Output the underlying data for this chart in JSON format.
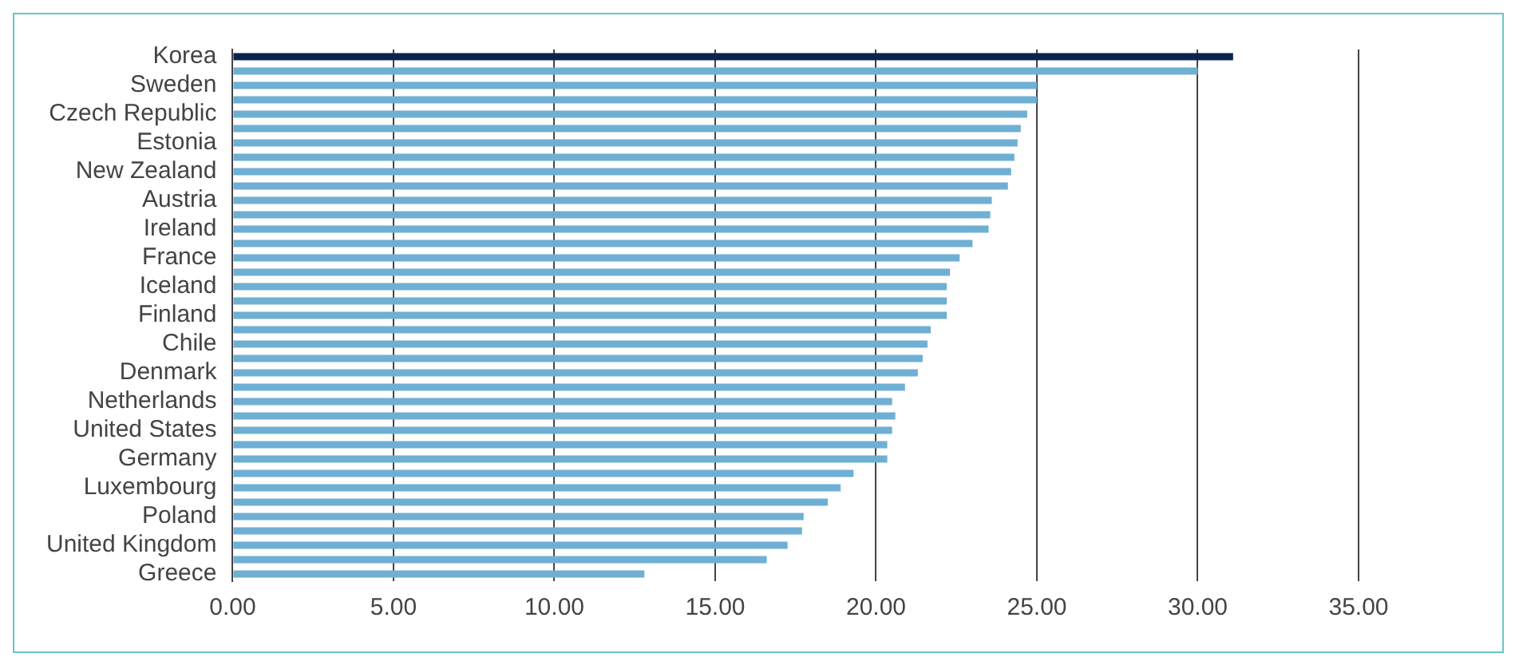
{
  "chart_data": {
    "type": "bar",
    "orientation": "horizontal",
    "categories": [
      "Korea",
      null,
      "Sweden",
      null,
      "Czech Republic",
      null,
      "Estonia",
      null,
      "New Zealand",
      null,
      "Austria",
      null,
      "Ireland",
      null,
      "France",
      null,
      "Iceland",
      null,
      "Finland",
      null,
      "Chile",
      null,
      "Denmark",
      null,
      "Netherlands",
      null,
      "United States",
      null,
      "Germany",
      null,
      "Luxembourg",
      null,
      "Poland",
      null,
      "United Kingdom",
      null,
      "Greece"
    ],
    "values": [
      31.1,
      30.0,
      25.0,
      25.0,
      24.7,
      24.5,
      24.4,
      24.3,
      24.2,
      24.1,
      23.6,
      23.55,
      23.5,
      23.0,
      22.6,
      22.3,
      22.2,
      22.2,
      22.2,
      21.7,
      21.6,
      21.45,
      21.3,
      20.9,
      20.5,
      20.6,
      20.5,
      20.35,
      20.35,
      19.3,
      18.9,
      18.5,
      17.75,
      17.7,
      17.25,
      16.6,
      12.8
    ],
    "colors": [
      "#0b2350",
      "#6fafd4",
      "#6fafd4",
      "#6fafd4",
      "#6fafd4",
      "#6fafd4",
      "#6fafd4",
      "#6fafd4",
      "#6fafd4",
      "#6fafd4",
      "#6fafd4",
      "#6fafd4",
      "#6fafd4",
      "#6fafd4",
      "#6fafd4",
      "#6fafd4",
      "#6fafd4",
      "#6fafd4",
      "#6fafd4",
      "#6fafd4",
      "#6fafd4",
      "#6fafd4",
      "#6fafd4",
      "#6fafd4",
      "#6fafd4",
      "#6fafd4",
      "#6fafd4",
      "#6fafd4",
      "#6fafd4",
      "#6fafd4",
      "#6fafd4",
      "#6fafd4",
      "#6fafd4",
      "#6fafd4",
      "#6fafd4",
      "#6fafd4",
      "#6fafd4"
    ],
    "xlim": [
      0,
      35
    ],
    "xticks": [
      {
        "value": 0,
        "label": "0.00"
      },
      {
        "value": 5,
        "label": "5.00"
      },
      {
        "value": 10,
        "label": "10.00"
      },
      {
        "value": 15,
        "label": "15.00"
      },
      {
        "value": 20,
        "label": "20.00"
      },
      {
        "value": 25,
        "label": "25.00"
      },
      {
        "value": 30,
        "label": "30.00"
      },
      {
        "value": 35,
        "label": "35.00"
      }
    ],
    "grid": "x",
    "legend": false
  }
}
